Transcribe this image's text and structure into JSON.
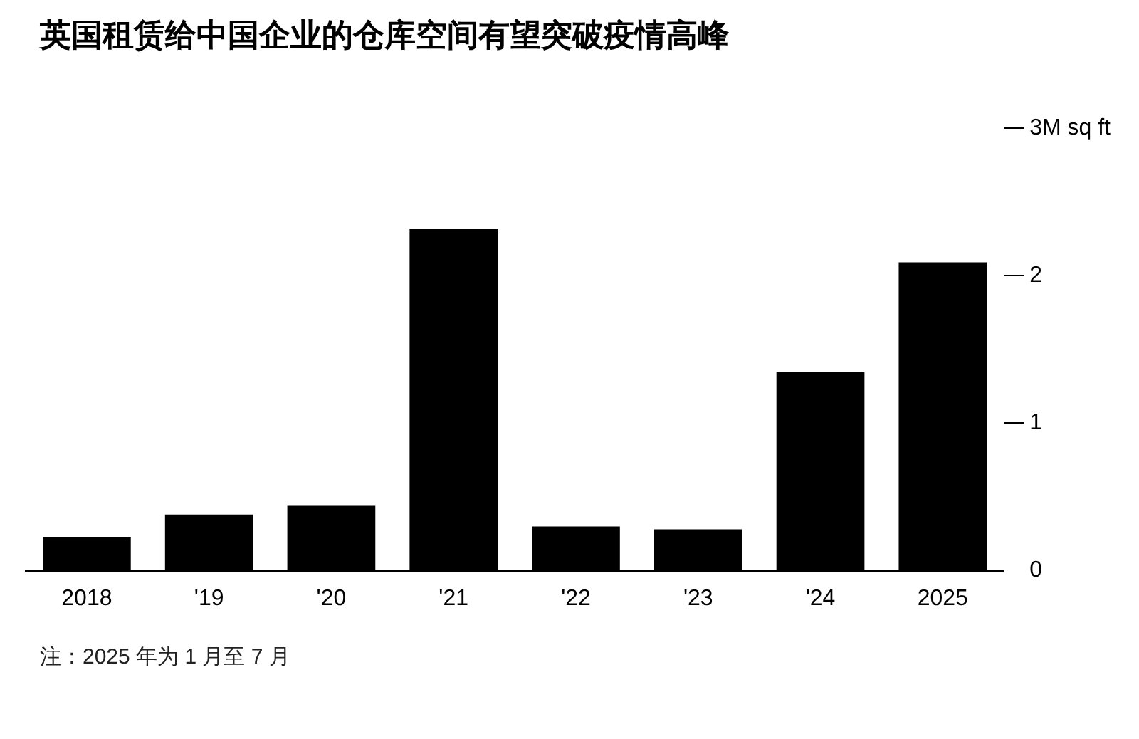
{
  "chart_data": {
    "type": "bar",
    "title": "英国租赁给中国企业的仓库空间有望突破疫情高峰",
    "categories": [
      "2018",
      "'19",
      "'20",
      "'21",
      "'22",
      "'23",
      "'24",
      "2025"
    ],
    "values": [
      0.23,
      0.38,
      0.44,
      2.32,
      0.3,
      0.28,
      1.35,
      2.09
    ],
    "color": "#000000",
    "ylim": [
      0,
      3
    ],
    "yticks": [
      0,
      1,
      2,
      {
        "value": 3,
        "label": "3M sq ft"
      }
    ],
    "grid": false,
    "annotations": [
      "注：2025 年为 1 月至 7 月"
    ]
  }
}
